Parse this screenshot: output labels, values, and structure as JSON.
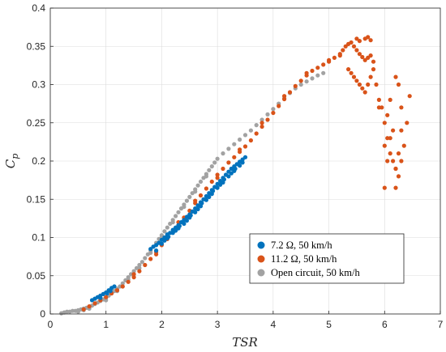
{
  "chart_data": {
    "type": "scatter",
    "xlabel": "TSR",
    "ylabel_main": "C",
    "ylabel_sub": "p",
    "xlim": [
      0,
      7
    ],
    "ylim": [
      0,
      0.4
    ],
    "xticks": [
      0,
      1,
      2,
      3,
      4,
      5,
      6,
      7
    ],
    "yticks": [
      0,
      0.05,
      0.1,
      0.15,
      0.2,
      0.25,
      0.3,
      0.35,
      0.4
    ],
    "xtick_labels": [
      "0",
      "1",
      "2",
      "3",
      "4",
      "5",
      "6",
      "7"
    ],
    "ytick_labels": [
      "0",
      "0.05",
      "0.1",
      "0.15",
      "0.2",
      "0.25",
      "0.3",
      "0.35",
      "0.4"
    ],
    "grid": true,
    "legend_position": "lower-right",
    "series": [
      {
        "name": "7.2 Ω, 50 km/h",
        "color": "#0072BD",
        "points": [
          [
            0.75,
            0.018
          ],
          [
            0.8,
            0.02
          ],
          [
            0.85,
            0.022
          ],
          [
            0.9,
            0.024
          ],
          [
            0.95,
            0.026
          ],
          [
            1.0,
            0.028
          ],
          [
            1.05,
            0.031
          ],
          [
            1.1,
            0.034
          ],
          [
            0.9,
            0.021
          ],
          [
            1.02,
            0.027
          ],
          [
            1.08,
            0.03
          ],
          [
            1.15,
            0.036
          ],
          [
            1.8,
            0.085
          ],
          [
            1.85,
            0.088
          ],
          [
            1.9,
            0.09
          ],
          [
            1.95,
            0.093
          ],
          [
            2.0,
            0.097
          ],
          [
            2.05,
            0.1
          ],
          [
            2.1,
            0.104
          ],
          [
            2.15,
            0.106
          ],
          [
            2.2,
            0.11
          ],
          [
            2.25,
            0.113
          ],
          [
            2.3,
            0.116
          ],
          [
            2.35,
            0.12
          ],
          [
            2.4,
            0.123
          ],
          [
            2.45,
            0.127
          ],
          [
            2.5,
            0.13
          ],
          [
            2.55,
            0.134
          ],
          [
            2.6,
            0.138
          ],
          [
            2.65,
            0.142
          ],
          [
            2.7,
            0.146
          ],
          [
            2.75,
            0.15
          ],
          [
            2.8,
            0.154
          ],
          [
            2.85,
            0.158
          ],
          [
            2.9,
            0.162
          ],
          [
            2.95,
            0.166
          ],
          [
            3.0,
            0.17
          ],
          [
            3.05,
            0.174
          ],
          [
            3.1,
            0.178
          ],
          [
            3.15,
            0.182
          ],
          [
            3.2,
            0.186
          ],
          [
            3.25,
            0.19
          ],
          [
            3.3,
            0.193
          ],
          [
            3.35,
            0.196
          ],
          [
            3.4,
            0.199
          ],
          [
            3.45,
            0.202
          ],
          [
            3.5,
            0.205
          ],
          [
            1.9,
            0.083
          ],
          [
            2.0,
            0.092
          ],
          [
            2.1,
            0.099
          ],
          [
            2.2,
            0.106
          ],
          [
            2.3,
            0.112
          ],
          [
            2.4,
            0.118
          ],
          [
            2.5,
            0.126
          ],
          [
            2.6,
            0.133
          ],
          [
            2.7,
            0.141
          ],
          [
            2.8,
            0.149
          ],
          [
            2.9,
            0.157
          ],
          [
            3.0,
            0.165
          ],
          [
            3.1,
            0.172
          ],
          [
            3.2,
            0.18
          ],
          [
            3.3,
            0.187
          ],
          [
            3.4,
            0.194
          ],
          [
            2.05,
            0.096
          ],
          [
            2.25,
            0.109
          ],
          [
            2.45,
            0.122
          ],
          [
            2.65,
            0.137
          ],
          [
            2.85,
            0.153
          ],
          [
            3.05,
            0.169
          ],
          [
            3.25,
            0.184
          ],
          [
            3.45,
            0.198
          ],
          [
            2.12,
            0.101
          ],
          [
            2.32,
            0.115
          ],
          [
            2.52,
            0.129
          ],
          [
            2.72,
            0.145
          ],
          [
            2.92,
            0.161
          ],
          [
            3.12,
            0.176
          ],
          [
            3.32,
            0.19
          ]
        ]
      },
      {
        "name": "11.2 Ω, 50 km/h",
        "color": "#D95319",
        "points": [
          [
            0.6,
            0.006
          ],
          [
            0.7,
            0.01
          ],
          [
            0.8,
            0.014
          ],
          [
            0.9,
            0.018
          ],
          [
            1.0,
            0.022
          ],
          [
            1.1,
            0.027
          ],
          [
            1.2,
            0.031
          ],
          [
            1.3,
            0.036
          ],
          [
            1.4,
            0.042
          ],
          [
            1.5,
            0.048
          ],
          [
            1.6,
            0.056
          ],
          [
            1.7,
            0.064
          ],
          [
            1.8,
            0.072
          ],
          [
            1.9,
            0.081
          ],
          [
            2.0,
            0.09
          ],
          [
            2.1,
            0.098
          ],
          [
            2.2,
            0.107
          ],
          [
            2.3,
            0.116
          ],
          [
            2.4,
            0.126
          ],
          [
            2.5,
            0.135
          ],
          [
            2.6,
            0.145
          ],
          [
            2.7,
            0.155
          ],
          [
            2.8,
            0.164
          ],
          [
            2.9,
            0.173
          ],
          [
            3.0,
            0.182
          ],
          [
            3.1,
            0.19
          ],
          [
            3.2,
            0.198
          ],
          [
            3.3,
            0.205
          ],
          [
            3.4,
            0.212
          ],
          [
            3.5,
            0.219
          ],
          [
            3.6,
            0.227
          ],
          [
            3.7,
            0.236
          ],
          [
            3.8,
            0.245
          ],
          [
            3.9,
            0.254
          ],
          [
            4.0,
            0.263
          ],
          [
            4.1,
            0.272
          ],
          [
            4.2,
            0.281
          ],
          [
            4.3,
            0.29
          ],
          [
            4.4,
            0.298
          ],
          [
            4.5,
            0.305
          ],
          [
            4.6,
            0.312
          ],
          [
            4.7,
            0.318
          ],
          [
            4.8,
            0.322
          ],
          [
            4.9,
            0.326
          ],
          [
            5.0,
            0.33
          ],
          [
            5.1,
            0.335
          ],
          [
            5.2,
            0.34
          ],
          [
            5.25,
            0.345
          ],
          [
            5.3,
            0.35
          ],
          [
            5.35,
            0.353
          ],
          [
            5.4,
            0.355
          ],
          [
            5.45,
            0.35
          ],
          [
            5.5,
            0.345
          ],
          [
            5.55,
            0.34
          ],
          [
            5.6,
            0.336
          ],
          [
            5.65,
            0.332
          ],
          [
            5.7,
            0.335
          ],
          [
            5.75,
            0.338
          ],
          [
            5.8,
            0.33
          ],
          [
            5.5,
            0.36
          ],
          [
            5.55,
            0.357
          ],
          [
            5.65,
            0.36
          ],
          [
            5.7,
            0.362
          ],
          [
            5.75,
            0.358
          ],
          [
            5.35,
            0.32
          ],
          [
            5.4,
            0.315
          ],
          [
            5.45,
            0.31
          ],
          [
            5.5,
            0.305
          ],
          [
            5.55,
            0.3
          ],
          [
            5.6,
            0.295
          ],
          [
            5.65,
            0.29
          ],
          [
            5.7,
            0.3
          ],
          [
            5.75,
            0.31
          ],
          [
            5.8,
            0.32
          ],
          [
            5.85,
            0.3
          ],
          [
            5.9,
            0.28
          ],
          [
            5.95,
            0.27
          ],
          [
            6.0,
            0.25
          ],
          [
            6.05,
            0.23
          ],
          [
            6.1,
            0.21
          ],
          [
            6.15,
            0.2
          ],
          [
            6.2,
            0.19
          ],
          [
            6.25,
            0.18
          ],
          [
            6.3,
            0.2
          ],
          [
            6.35,
            0.22
          ],
          [
            6.4,
            0.25
          ],
          [
            6.45,
            0.285
          ],
          [
            6.2,
            0.31
          ],
          [
            6.25,
            0.3
          ],
          [
            6.3,
            0.27
          ],
          [
            6.1,
            0.28
          ],
          [
            6.05,
            0.26
          ],
          [
            6.15,
            0.24
          ],
          [
            6.2,
            0.165
          ],
          [
            6.0,
            0.165
          ],
          [
            6.05,
            0.2
          ],
          [
            6.1,
            0.23
          ],
          [
            6.2,
            0.19
          ],
          [
            6.25,
            0.21
          ],
          [
            6.3,
            0.24
          ],
          [
            5.9,
            0.27
          ],
          [
            6.0,
            0.22
          ],
          [
            1.5,
            0.052
          ],
          [
            1.9,
            0.078
          ],
          [
            2.1,
            0.102
          ],
          [
            2.3,
            0.12
          ],
          [
            2.6,
            0.148
          ],
          [
            3.0,
            0.178
          ],
          [
            3.4,
            0.215
          ],
          [
            3.8,
            0.25
          ],
          [
            4.2,
            0.285
          ],
          [
            4.6,
            0.315
          ],
          [
            5.0,
            0.332
          ],
          [
            5.2,
            0.338
          ]
        ]
      },
      {
        "name": "Open circuit, 50 km/h",
        "color": "#A2A2A2",
        "points": [
          [
            0.2,
            0.001
          ],
          [
            0.25,
            0.002
          ],
          [
            0.3,
            0.003
          ],
          [
            0.35,
            0.003
          ],
          [
            0.4,
            0.004
          ],
          [
            0.45,
            0.004
          ],
          [
            0.5,
            0.005
          ],
          [
            0.55,
            0.006
          ],
          [
            0.6,
            0.007
          ],
          [
            0.65,
            0.008
          ],
          [
            0.7,
            0.009
          ],
          [
            0.75,
            0.011
          ],
          [
            0.8,
            0.013
          ],
          [
            0.85,
            0.015
          ],
          [
            0.9,
            0.017
          ],
          [
            0.95,
            0.019
          ],
          [
            1.0,
            0.021
          ],
          [
            1.05,
            0.024
          ],
          [
            1.1,
            0.027
          ],
          [
            1.15,
            0.03
          ],
          [
            1.2,
            0.033
          ],
          [
            1.25,
            0.036
          ],
          [
            1.3,
            0.04
          ],
          [
            1.35,
            0.044
          ],
          [
            1.4,
            0.048
          ],
          [
            1.45,
            0.052
          ],
          [
            1.5,
            0.056
          ],
          [
            1.55,
            0.06
          ],
          [
            1.6,
            0.064
          ],
          [
            1.65,
            0.068
          ],
          [
            1.7,
            0.073
          ],
          [
            1.75,
            0.078
          ],
          [
            1.8,
            0.083
          ],
          [
            1.85,
            0.088
          ],
          [
            1.9,
            0.093
          ],
          [
            1.95,
            0.098
          ],
          [
            2.0,
            0.103
          ],
          [
            2.05,
            0.108
          ],
          [
            2.1,
            0.113
          ],
          [
            2.15,
            0.118
          ],
          [
            2.2,
            0.123
          ],
          [
            2.25,
            0.128
          ],
          [
            2.3,
            0.133
          ],
          [
            2.35,
            0.138
          ],
          [
            2.4,
            0.143
          ],
          [
            2.45,
            0.148
          ],
          [
            2.5,
            0.153
          ],
          [
            2.55,
            0.158
          ],
          [
            2.6,
            0.163
          ],
          [
            2.65,
            0.168
          ],
          [
            2.7,
            0.173
          ],
          [
            2.75,
            0.178
          ],
          [
            2.8,
            0.183
          ],
          [
            2.85,
            0.188
          ],
          [
            2.9,
            0.193
          ],
          [
            2.95,
            0.198
          ],
          [
            3.0,
            0.203
          ],
          [
            3.1,
            0.21
          ],
          [
            3.2,
            0.216
          ],
          [
            3.3,
            0.222
          ],
          [
            3.4,
            0.228
          ],
          [
            3.5,
            0.234
          ],
          [
            3.6,
            0.24
          ],
          [
            3.7,
            0.247
          ],
          [
            3.8,
            0.254
          ],
          [
            3.9,
            0.261
          ],
          [
            4.0,
            0.268
          ],
          [
            4.1,
            0.275
          ],
          [
            4.2,
            0.282
          ],
          [
            4.3,
            0.289
          ],
          [
            4.4,
            0.295
          ],
          [
            4.5,
            0.3
          ],
          [
            4.6,
            0.304
          ],
          [
            4.7,
            0.308
          ],
          [
            4.8,
            0.312
          ],
          [
            4.9,
            0.315
          ],
          [
            1.0,
            0.018
          ],
          [
            1.2,
            0.03
          ],
          [
            1.4,
            0.045
          ],
          [
            1.6,
            0.06
          ],
          [
            1.8,
            0.08
          ],
          [
            2.0,
            0.1
          ],
          [
            2.2,
            0.12
          ],
          [
            2.4,
            0.14
          ],
          [
            2.6,
            0.16
          ],
          [
            2.8,
            0.18
          ],
          [
            0.5,
            0.003
          ],
          [
            0.6,
            0.005
          ],
          [
            0.7,
            0.007
          ]
        ]
      }
    ]
  }
}
